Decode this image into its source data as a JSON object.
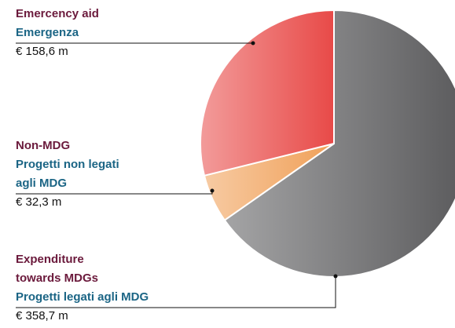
{
  "chart_data": {
    "type": "pie",
    "labels_en": [
      [
        "Emercency aid"
      ],
      [
        "Non-MDG"
      ],
      [
        "Expenditure",
        "towards MDGs"
      ]
    ],
    "labels_it": [
      [
        "Emergenza"
      ],
      [
        "Progetti non legati",
        "agli MDG"
      ],
      [
        "Progetti legati agli MDG"
      ]
    ],
    "values": [
      158.6,
      32.3,
      358.7
    ],
    "value_labels": [
      "€ 158,6 m",
      "€ 32,3 m",
      "€ 358,7 m"
    ],
    "colors": [
      "#e84a48",
      "#f0a058",
      "#5a5a5c"
    ],
    "en_color": "#6b1a3c",
    "it_color": "#1b6585"
  }
}
